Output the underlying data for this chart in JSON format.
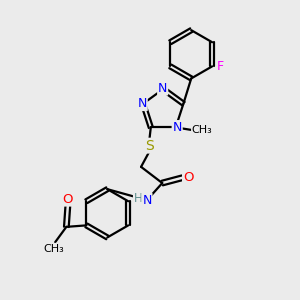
{
  "background_color": "#ebebeb",
  "bond_color": "#000000",
  "atom_colors": {
    "N": "#0000ff",
    "O": "#ff0000",
    "S": "#999900",
    "F": "#ff00ff",
    "H": "#5f8f8f",
    "C": "#000000"
  },
  "figsize": [
    3.0,
    3.0
  ],
  "dpi": 100
}
